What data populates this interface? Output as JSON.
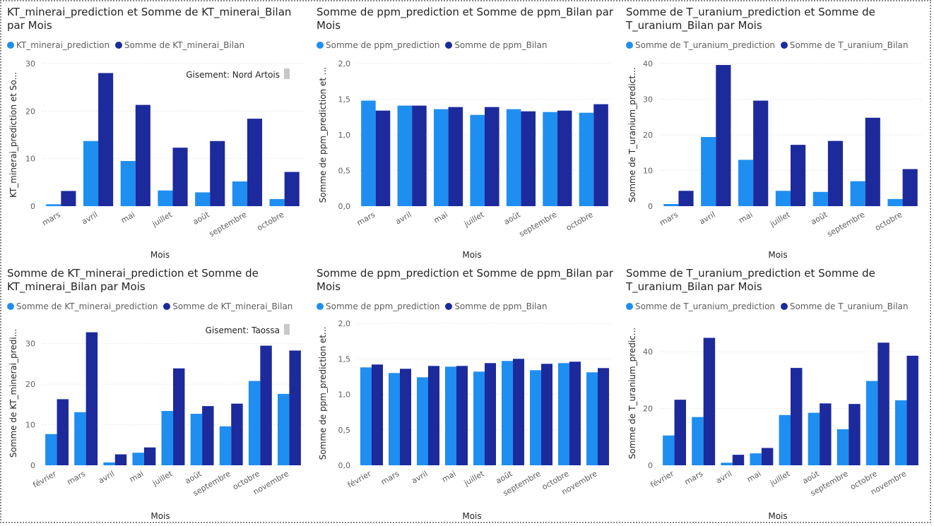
{
  "colors": {
    "prediction": "#1f8ef1",
    "bilan": "#1c2a9c",
    "grid": "#d6d6d6",
    "slicer": "#c8c8c8"
  },
  "chart_data": [
    {
      "type": "bar",
      "title": "KT_minerai_prediction et Somme de KT_minerai_Bilan par Mois",
      "xlabel": "Mois",
      "ylabel": "KT_minerai_prediction et So...",
      "annotation": "Gisement: Nord Artois",
      "legend_position": "top-left",
      "grid": true,
      "ylim": [
        0,
        30
      ],
      "yticks": [
        "0",
        "10",
        "20",
        "30"
      ],
      "ytick_values": [
        0,
        10,
        20,
        30
      ],
      "categories": [
        "mars",
        "avril",
        "mai",
        "juillet",
        "août",
        "septembre",
        "octobre"
      ],
      "series": [
        {
          "name": "KT_minerai_prediction",
          "values": [
            0.4,
            13.7,
            9.5,
            3.3,
            2.9,
            5.2,
            1.5
          ]
        },
        {
          "name": "Somme de KT_minerai_Bilan",
          "values": [
            3.2,
            28.0,
            21.3,
            12.3,
            13.7,
            18.4,
            7.2
          ]
        }
      ]
    },
    {
      "type": "bar",
      "title": "Somme de ppm_prediction et Somme de ppm_Bilan par Mois",
      "xlabel": "Mois",
      "ylabel": "Somme de ppm_prediction et ...",
      "annotation": "",
      "legend_position": "top-left",
      "grid": true,
      "ylim": [
        0,
        2
      ],
      "yticks": [
        "0,0",
        "0,5",
        "1,0",
        "1,5",
        "2,0"
      ],
      "ytick_values": [
        0,
        0.5,
        1,
        1.5,
        2
      ],
      "categories": [
        "mars",
        "avril",
        "mai",
        "juillet",
        "août",
        "septembre",
        "octobre"
      ],
      "series": [
        {
          "name": "Somme de ppm_prediction",
          "values": [
            1.48,
            1.41,
            1.36,
            1.28,
            1.36,
            1.32,
            1.31
          ]
        },
        {
          "name": "Somme de ppm_Bilan",
          "values": [
            1.34,
            1.41,
            1.39,
            1.39,
            1.33,
            1.34,
            1.43
          ]
        }
      ]
    },
    {
      "type": "bar",
      "title": "Somme de T_uranium_prediction et Somme de T_uranium_Bilan par Mois",
      "xlabel": "Mois",
      "ylabel": "Somme de T_uranium_predict...",
      "annotation": "",
      "legend_position": "top-left",
      "grid": true,
      "ylim": [
        0,
        40
      ],
      "yticks": [
        "0",
        "10",
        "20",
        "30",
        "40"
      ],
      "ytick_values": [
        0,
        10,
        20,
        30,
        40
      ],
      "categories": [
        "mars",
        "avril",
        "mai",
        "juillet",
        "août",
        "septembre",
        "octobre"
      ],
      "series": [
        {
          "name": "Somme de T_uranium_prediction",
          "values": [
            0.6,
            19.4,
            13.0,
            4.3,
            4.0,
            7.0,
            2.0
          ]
        },
        {
          "name": "Somme de T_uranium_Bilan",
          "values": [
            4.3,
            39.6,
            29.6,
            17.2,
            18.3,
            24.8,
            10.4
          ]
        }
      ]
    },
    {
      "type": "bar",
      "title": "Somme de KT_minerai_prediction et Somme de KT_minerai_Bilan par Mois",
      "xlabel": "Mois",
      "ylabel": "Somme de KT_minerai_predi...",
      "annotation": "Gisement: Taossa",
      "legend_position": "top-left",
      "grid": true,
      "ylim": [
        0,
        35
      ],
      "yticks": [
        "0",
        "10",
        "20",
        "30"
      ],
      "ytick_values": [
        0,
        10,
        20,
        30
      ],
      "categories": [
        "février",
        "mars",
        "avril",
        "mai",
        "juillet",
        "août",
        "septembre",
        "octobre",
        "novembre"
      ],
      "series": [
        {
          "name": "Somme de KT_minerai_prediction",
          "values": [
            7.7,
            13.1,
            0.7,
            3.1,
            13.4,
            12.7,
            9.6,
            20.8,
            17.6
          ]
        },
        {
          "name": "Somme de KT_minerai_Bilan",
          "values": [
            16.3,
            32.8,
            2.7,
            4.4,
            23.9,
            14.6,
            15.2,
            29.5,
            28.3
          ]
        }
      ]
    },
    {
      "type": "bar",
      "title": "Somme de ppm_prediction et Somme de ppm_Bilan par Mois",
      "xlabel": "Mois",
      "ylabel": "Somme de ppm_prediction et...",
      "annotation": "",
      "legend_position": "top-left",
      "grid": true,
      "ylim": [
        0,
        2
      ],
      "yticks": [
        "0,0",
        "0,5",
        "1,0",
        "1,5",
        "2,0"
      ],
      "ytick_values": [
        0,
        0.5,
        1,
        1.5,
        2
      ],
      "categories": [
        "février",
        "mars",
        "avril",
        "mai",
        "juillet",
        "août",
        "septembre",
        "octobre",
        "novembre"
      ],
      "series": [
        {
          "name": "Somme de ppm_prediction",
          "values": [
            1.38,
            1.3,
            1.24,
            1.39,
            1.32,
            1.47,
            1.34,
            1.44,
            1.31
          ]
        },
        {
          "name": "Somme de ppm_Bilan",
          "values": [
            1.42,
            1.36,
            1.4,
            1.4,
            1.44,
            1.5,
            1.43,
            1.46,
            1.37
          ]
        }
      ]
    },
    {
      "type": "bar",
      "title": "Somme de T_uranium_prediction et Somme de T_uranium_Bilan par Mois",
      "xlabel": "Mois",
      "ylabel": "Somme de T_uranium_predic...",
      "annotation": "",
      "legend_position": "top-left",
      "grid": true,
      "ylim": [
        0,
        50
      ],
      "yticks": [
        "0",
        "20",
        "40"
      ],
      "ytick_values": [
        0,
        20,
        40
      ],
      "categories": [
        "février",
        "mars",
        "avril",
        "mai",
        "juillet",
        "août",
        "septembre",
        "octobre",
        "novembre"
      ],
      "series": [
        {
          "name": "Somme de T_uranium_prediction",
          "values": [
            10.5,
            17.0,
            0.9,
            4.2,
            17.7,
            18.5,
            12.7,
            29.7,
            22.9
          ]
        },
        {
          "name": "Somme de T_uranium_Bilan",
          "values": [
            23.1,
            44.9,
            3.7,
            6.1,
            34.3,
            21.8,
            21.6,
            43.2,
            38.6
          ]
        }
      ]
    }
  ]
}
